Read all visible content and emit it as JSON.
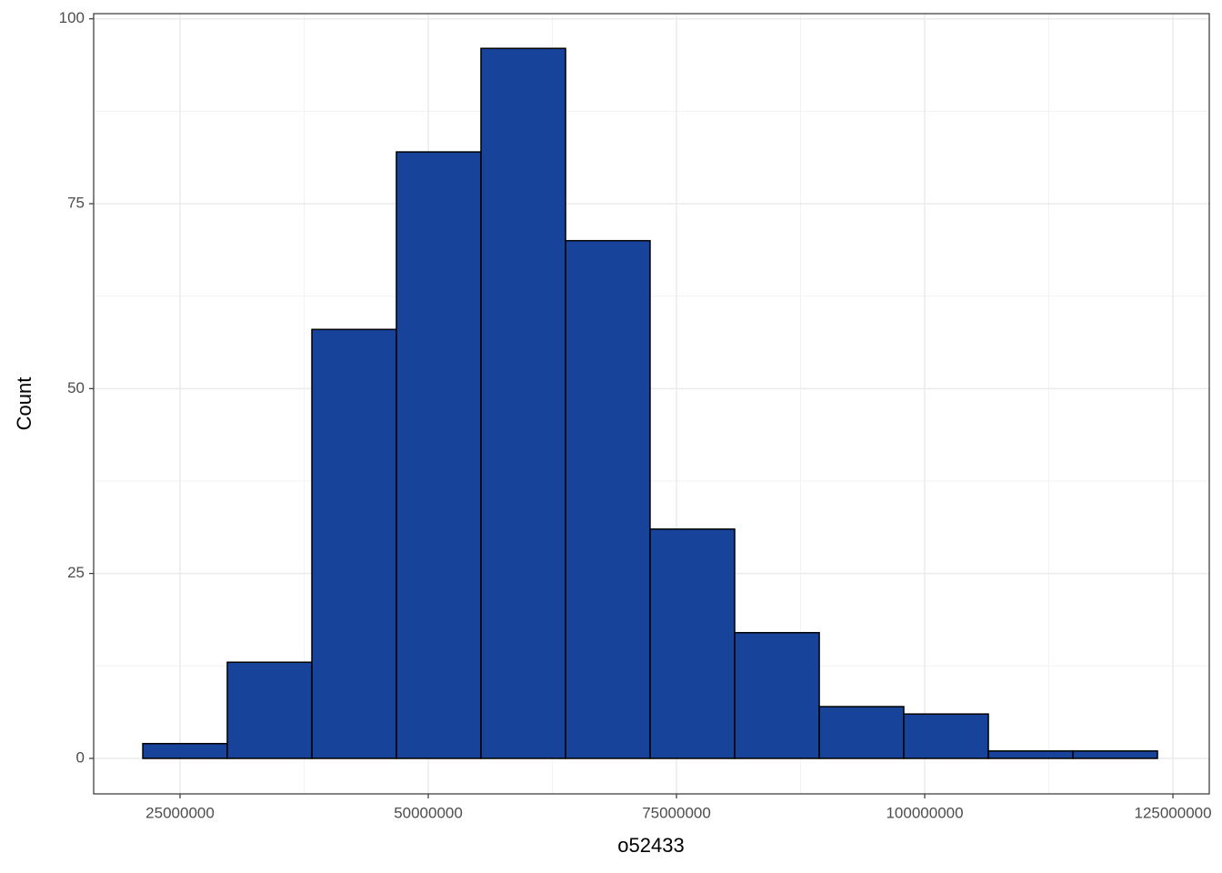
{
  "chart_data": {
    "type": "histogram",
    "x_label": "o52433",
    "y_label": "Count",
    "bins": [
      21250000,
      29760000,
      38280000,
      46790000,
      55310000,
      63830000,
      72340000,
      80860000,
      89380000,
      97890000,
      106410000,
      114930000,
      123440000
    ],
    "values": [
      2,
      13,
      58,
      82,
      96,
      70,
      31,
      17,
      7,
      6,
      1,
      1
    ],
    "color": "#18439a",
    "xlim": [
      16300000,
      128660000
    ],
    "xticks": [
      25000000,
      50000000,
      75000000,
      100000000,
      125000000
    ],
    "ylim": [
      -4.8,
      100.7
    ],
    "yticks": [
      0,
      25,
      50,
      75,
      100
    ],
    "grid": true
  }
}
